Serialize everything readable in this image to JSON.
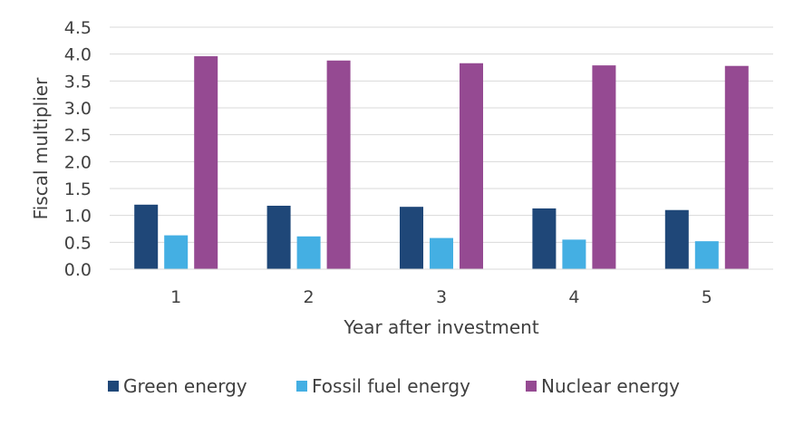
{
  "chart_data": {
    "type": "bar",
    "title": "",
    "xlabel": "Year after investment",
    "ylabel": "Fiscal multiplier",
    "categories": [
      "1",
      "2",
      "3",
      "4",
      "5"
    ],
    "ylim": [
      0,
      4.5
    ],
    "yticks": [
      "0.0",
      "0.5",
      "1.0",
      "1.5",
      "2.0",
      "2.5",
      "3.0",
      "3.5",
      "4.0",
      "4.5"
    ],
    "grid": true,
    "legend_position": "bottom",
    "series": [
      {
        "name": "Green energy",
        "color": "#1f4778",
        "values": [
          1.2,
          1.18,
          1.16,
          1.13,
          1.1
        ]
      },
      {
        "name": "Fossil fuel energy",
        "color": "#44afe3",
        "values": [
          0.63,
          0.61,
          0.58,
          0.55,
          0.52
        ]
      },
      {
        "name": "Nuclear energy",
        "color": "#954a92",
        "values": [
          3.96,
          3.88,
          3.83,
          3.79,
          3.78
        ]
      }
    ]
  }
}
